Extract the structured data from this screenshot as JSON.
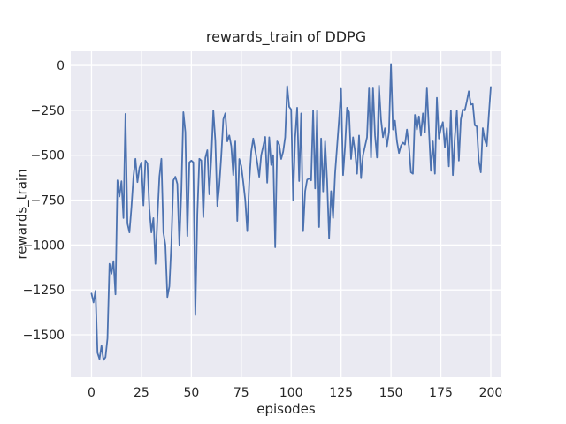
{
  "figure": {
    "title": "rewards_train of DDPG",
    "xlabel": "episodes",
    "ylabel": "rewards_train"
  },
  "chart_data": {
    "type": "line",
    "title": "rewards_train of DDPG",
    "xlabel": "episodes",
    "ylabel": "rewards_train",
    "x_ticks": [
      0,
      25,
      50,
      75,
      100,
      125,
      150,
      175,
      200
    ],
    "y_ticks": [
      0,
      -250,
      -500,
      -750,
      -1000,
      -1250,
      -1500
    ],
    "xlim": [
      -10.4,
      205.1
    ],
    "ylim": [
      -1736,
      79
    ],
    "grid": true,
    "legend_position": "none",
    "axes_bg": "#eaeaf2",
    "grid_color": "#ffffff",
    "line_color": "#4c72b0",
    "series": [
      {
        "name": "rewards_train",
        "x_start": 0,
        "x_step": 1,
        "values": [
          -1270,
          -1320,
          -1255,
          -1600,
          -1635,
          -1560,
          -1640,
          -1625,
          -1520,
          -1105,
          -1160,
          -1090,
          -1275,
          -640,
          -730,
          -645,
          -850,
          -270,
          -880,
          -930,
          -790,
          -620,
          -520,
          -650,
          -570,
          -540,
          -780,
          -530,
          -545,
          -800,
          -930,
          -850,
          -1105,
          -850,
          -620,
          -520,
          -930,
          -1000,
          -1290,
          -1230,
          -990,
          -640,
          -620,
          -660,
          -1000,
          -700,
          -260,
          -370,
          -950,
          -540,
          -530,
          -540,
          -1390,
          -830,
          -520,
          -530,
          -845,
          -515,
          -472,
          -718,
          -516,
          -250,
          -420,
          -783,
          -670,
          -500,
          -300,
          -267,
          -423,
          -390,
          -450,
          -611,
          -423,
          -866,
          -521,
          -560,
          -650,
          -750,
          -923,
          -650,
          -480,
          -407,
          -472,
          -540,
          -620,
          -500,
          -450,
          -398,
          -653,
          -400,
          -554,
          -500,
          -1013,
          -423,
          -440,
          -521,
          -480,
          -400,
          -115,
          -230,
          -245,
          -751,
          -400,
          -235,
          -644,
          -267,
          -923,
          -700,
          -636,
          -630,
          -640,
          -251,
          -685,
          -251,
          -900,
          -407,
          -702,
          -423,
          -640,
          -965,
          -700,
          -850,
          -600,
          -450,
          -300,
          -130,
          -611,
          -450,
          -235,
          -260,
          -521,
          -400,
          -480,
          -603,
          -390,
          -628,
          -500,
          -450,
          -400,
          -128,
          -513,
          -128,
          -390,
          -513,
          -112,
          -300,
          -400,
          -350,
          -450,
          -370,
          8,
          -357,
          -308,
          -423,
          -488,
          -447,
          -430,
          -440,
          -357,
          -450,
          -595,
          -603,
          -275,
          -357,
          -284,
          -390,
          -267,
          -374,
          -128,
          -357,
          -587,
          -423,
          -603,
          -180,
          -407,
          -350,
          -316,
          -456,
          -349,
          -562,
          -251,
          -611,
          -400,
          -251,
          -530,
          -300,
          -245,
          -250,
          -200,
          -144,
          -218,
          -215,
          -333,
          -340,
          -530,
          -595,
          -349,
          -415,
          -448,
          -280,
          -120
        ]
      }
    ]
  }
}
